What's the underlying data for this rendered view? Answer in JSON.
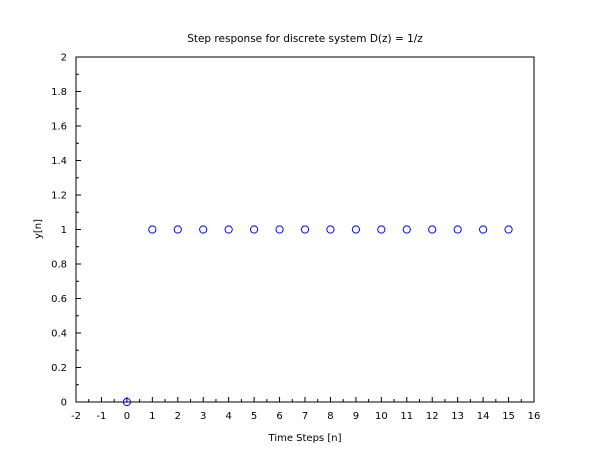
{
  "chart_data": {
    "type": "scatter",
    "title": "Step response for discrete system D(z) = 1/z",
    "xlabel": "Time Steps [n]",
    "ylabel": "y[n]",
    "xlim": [
      -2,
      16
    ],
    "ylim": [
      0,
      2
    ],
    "xticks": [
      "-2",
      "-1",
      "0",
      "1",
      "2",
      "3",
      "4",
      "5",
      "6",
      "7",
      "8",
      "9",
      "10",
      "11",
      "12",
      "13",
      "14",
      "15",
      "16"
    ],
    "yticks": [
      "0",
      "0.2",
      "0.4",
      "0.6",
      "0.8",
      "1",
      "1.2",
      "1.4",
      "1.6",
      "1.8",
      "2"
    ],
    "grid": false,
    "marker": "circle",
    "marker_color": "#0000ff",
    "series": [
      {
        "x": [
          0,
          1,
          2,
          3,
          4,
          5,
          6,
          7,
          8,
          9,
          10,
          11,
          12,
          13,
          14,
          15
        ],
        "y": [
          0,
          1,
          1,
          1,
          1,
          1,
          1,
          1,
          1,
          1,
          1,
          1,
          1,
          1,
          1,
          1
        ]
      }
    ]
  }
}
